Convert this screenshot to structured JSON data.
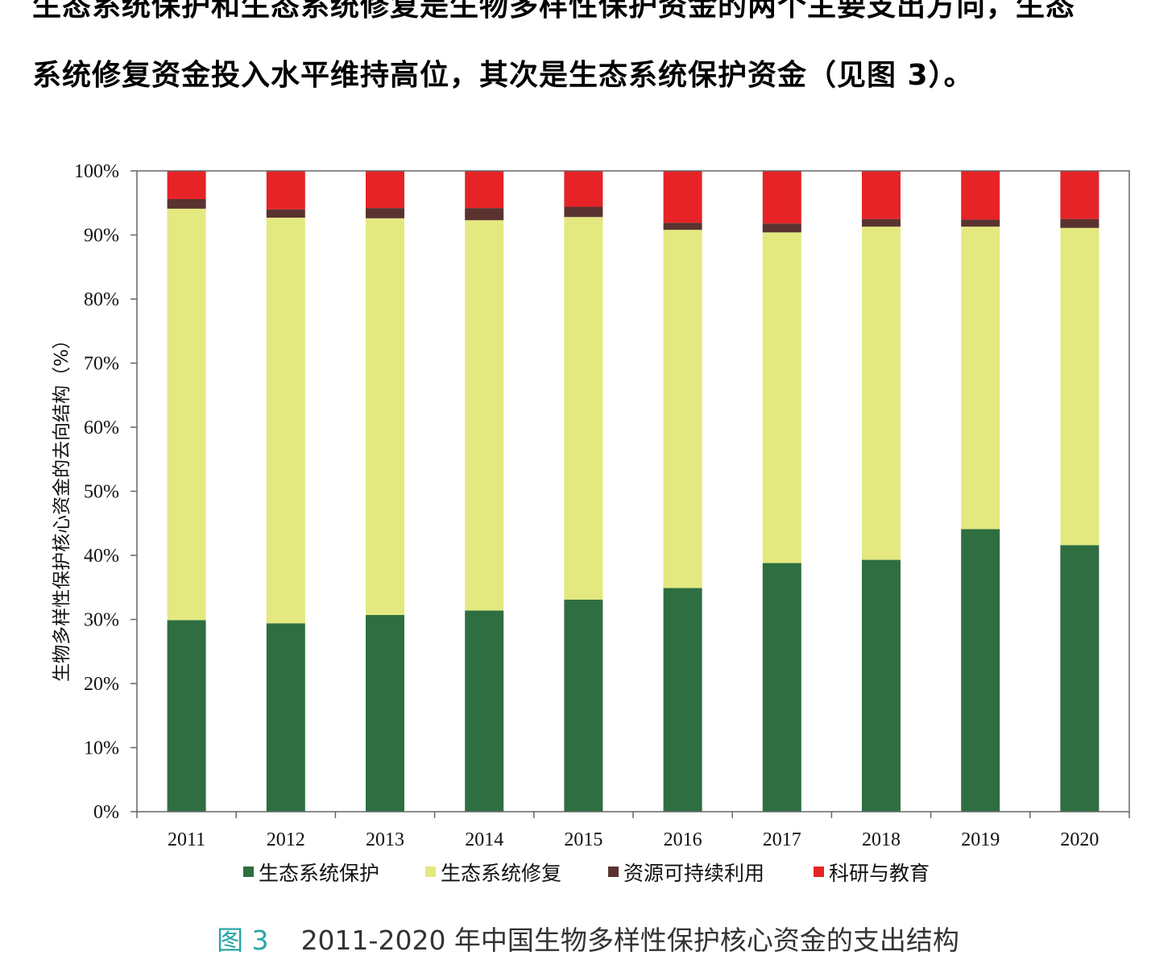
{
  "text": {
    "para_line1": "生态系统保护和生态系统修复是生物多样性保护资金的两个主要支出方向，生态",
    "para_line2": "系统修复资金投入水平维持高位，其次是生态系统保护资金（见图 3）。"
  },
  "caption": {
    "figure_number": "图 3",
    "title": "2011-2020 年中国生物多样性保护核心资金的支出结构"
  },
  "colors": {
    "生态系统保护": "#2e6e41",
    "生态系统修复": "#e3e97f",
    "资源可持续利用": "#5a3330",
    "科研与教育": "#e62427"
  },
  "chart_data": {
    "type": "bar",
    "stacked": true,
    "categories": [
      "2011",
      "2012",
      "2013",
      "2014",
      "2015",
      "2016",
      "2017",
      "2018",
      "2019",
      "2020"
    ],
    "series": [
      {
        "name": "生态系统保护",
        "values": [
          29.9,
          29.4,
          30.7,
          31.4,
          33.1,
          34.9,
          38.8,
          39.3,
          44.1,
          41.6
        ]
      },
      {
        "name": "生态系统修复",
        "values": [
          64.2,
          63.3,
          61.9,
          60.9,
          59.7,
          55.9,
          51.6,
          52.0,
          47.2,
          49.5
        ]
      },
      {
        "name": "资源可持续利用",
        "values": [
          1.5,
          1.3,
          1.6,
          1.9,
          1.6,
          1.1,
          1.4,
          1.2,
          1.1,
          1.4
        ]
      },
      {
        "name": "科研与教育",
        "values": [
          4.4,
          6.0,
          5.8,
          5.8,
          5.6,
          8.1,
          8.2,
          7.5,
          7.6,
          7.5
        ]
      }
    ],
    "y_ticks": [
      "0%",
      "10%",
      "20%",
      "30%",
      "40%",
      "50%",
      "60%",
      "70%",
      "80%",
      "90%",
      "100%"
    ],
    "ylabel": "生物多样性保护核心资金的去向结构（%）",
    "xlabel": "",
    "ylim": [
      0,
      100
    ],
    "grid": false,
    "legend_position": "bottom"
  }
}
